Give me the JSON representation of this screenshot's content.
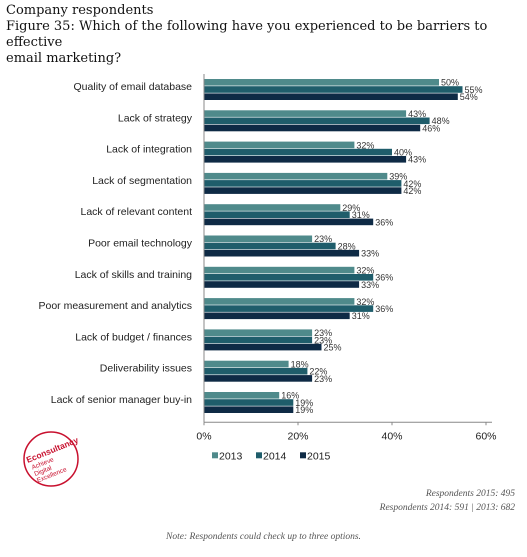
{
  "header": {
    "line1": "Company respondents",
    "line2": "Figure 35: Which of the following have you experienced to be barriers to effective",
    "line3": "email marketing?"
  },
  "colors": {
    "2013": "#4f8a8b",
    "2014": "#1f5d6b",
    "2015": "#0e2a45",
    "axis": "#888888",
    "text": "#222222"
  },
  "chart_data": {
    "type": "bar",
    "orientation": "horizontal",
    "title": "Figure 35: Which of the following have you experienced to be barriers to effective email marketing?",
    "categories": [
      "Quality of email database",
      "Lack of strategy",
      "Lack of integration",
      "Lack of segmentation",
      "Lack of relevant content",
      "Poor email technology",
      "Lack of skills and training",
      "Poor measurement and analytics",
      "Lack of budget / finances",
      "Deliverability issues",
      "Lack of senior manager buy-in"
    ],
    "series": [
      {
        "name": "2013",
        "values": [
          50,
          43,
          32,
          39,
          29,
          23,
          32,
          32,
          23,
          18,
          16
        ]
      },
      {
        "name": "2014",
        "values": [
          55,
          48,
          40,
          42,
          31,
          28,
          36,
          36,
          23,
          22,
          19
        ]
      },
      {
        "name": "2015",
        "values": [
          54,
          46,
          43,
          42,
          36,
          33,
          33,
          31,
          25,
          23,
          19
        ]
      }
    ],
    "data_labels": [
      [
        "50%",
        "55%",
        "54%"
      ],
      [
        "43%",
        "48%",
        "46%"
      ],
      [
        "32%",
        "40%",
        "43%"
      ],
      [
        "39%",
        "42%",
        "42%"
      ],
      [
        "29%",
        "31%",
        "36%"
      ],
      [
        "23%",
        "28%",
        "33%"
      ],
      [
        "32%",
        "36%",
        "33%"
      ],
      [
        "32%",
        "36%",
        "31%"
      ],
      [
        "23%",
        "23%",
        "25%"
      ],
      [
        "18%",
        "22%",
        "23%"
      ],
      [
        "16%",
        "19%",
        "19%"
      ]
    ],
    "xlim": [
      0,
      60
    ],
    "xticks": [
      "0%",
      "20%",
      "40%",
      "60%"
    ],
    "legend": {
      "position": "bottom",
      "entries": [
        "2013",
        "2014",
        "2015"
      ]
    },
    "grid": false
  },
  "logo": {
    "lines": [
      "Econsultancy",
      "Achieve",
      "Digital",
      "Excellence"
    ]
  },
  "footer": {
    "respondents_2015": "Respondents 2015: 495",
    "respondents_2014_2013": "Respondents 2014: 591 | 2013: 682",
    "note": "Note: Respondents could check up to three options."
  }
}
